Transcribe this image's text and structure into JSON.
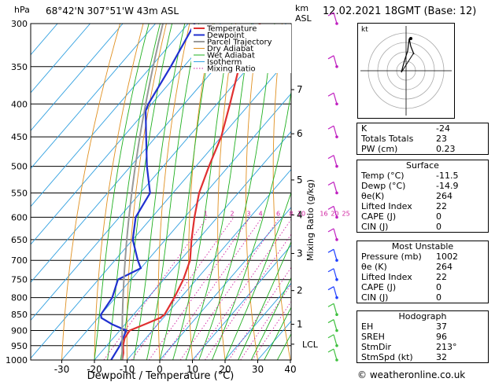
{
  "header": {
    "location": "68°42'N  307°51'W  43m  ASL",
    "datetime": "12.02.2021  18GMT  (Base: 12)",
    "hpa_unit": "hPa",
    "km_unit": "km",
    "asl_unit": "ASL"
  },
  "chart_data": {
    "type": "skew-t",
    "xlabel": "Dewpoint / Temperature (°C)",
    "ylabel": "hPa",
    "y2label": "Mixing Ratio (g/kg)",
    "pressure_levels": [
      300,
      350,
      400,
      450,
      500,
      550,
      600,
      650,
      700,
      750,
      800,
      850,
      900,
      950,
      1000
    ],
    "temperature_ticks": [
      -30,
      -20,
      -10,
      0,
      10,
      20,
      30,
      40
    ],
    "km_ticks": [
      {
        "km": "1",
        "p": 880
      },
      {
        "km": "2",
        "p": 780
      },
      {
        "km": "3",
        "p": 683
      },
      {
        "km": "4",
        "p": 595
      },
      {
        "km": "5",
        "p": 525
      },
      {
        "km": "6",
        "p": 445
      },
      {
        "km": "7",
        "p": 380
      }
    ],
    "lcl": {
      "label": "LCL",
      "p": 945
    },
    "mixing_ratio_labels": [
      "1",
      "2",
      "3",
      "4",
      "6",
      "8",
      "10",
      "16",
      "20",
      "25"
    ],
    "legend": [
      "Temperature",
      "Dewpoint",
      "Parcel Trajectory",
      "Dry Adiabat",
      "Wet Adiabat",
      "Isotherm",
      "Mixing Ratio"
    ],
    "series": [
      {
        "name": "Temperature",
        "color": "#e03030",
        "points": [
          [
            1000,
            -11.5
          ],
          [
            975,
            -13
          ],
          [
            950,
            -15
          ],
          [
            925,
            -16.5
          ],
          [
            900,
            -17
          ],
          [
            880,
            -14
          ],
          [
            860,
            -11
          ],
          [
            850,
            -10.5
          ],
          [
            800,
            -12
          ],
          [
            750,
            -14
          ],
          [
            700,
            -17
          ],
          [
            650,
            -22
          ],
          [
            600,
            -27
          ],
          [
            550,
            -32
          ],
          [
            500,
            -36
          ],
          [
            450,
            -40
          ],
          [
            400,
            -46
          ],
          [
            350,
            -53
          ],
          [
            300,
            -58
          ]
        ]
      },
      {
        "name": "Dewpoint",
        "color": "#2030d0",
        "points": [
          [
            1000,
            -14.9
          ],
          [
            950,
            -16
          ],
          [
            900,
            -18
          ],
          [
            880,
            -24
          ],
          [
            860,
            -29
          ],
          [
            850,
            -30
          ],
          [
            800,
            -31
          ],
          [
            750,
            -34
          ],
          [
            720,
            -30
          ],
          [
            700,
            -33
          ],
          [
            650,
            -40
          ],
          [
            600,
            -45
          ],
          [
            550,
            -47
          ],
          [
            500,
            -55
          ],
          [
            450,
            -63
          ],
          [
            410,
            -70
          ],
          [
            400,
            -71
          ],
          [
            350,
            -74
          ],
          [
            300,
            -78
          ]
        ]
      }
    ],
    "colors": {
      "isotherm": "#30a0e0",
      "dry_adiabat": "#e09020",
      "wet_adiabat": "#20b020",
      "mixing_ratio": "#d020a0"
    }
  },
  "hodograph": {
    "label": "kt"
  },
  "indices": [
    {
      "k": "K",
      "v": "-24"
    },
    {
      "k": "Totals Totals",
      "v": "23"
    },
    {
      "k": "PW (cm)",
      "v": "0.23"
    }
  ],
  "surface": {
    "title": "Surface",
    "rows": [
      {
        "k": "Temp (°C)",
        "v": "-11.5"
      },
      {
        "k": "Dewp (°C)",
        "v": "-14.9"
      },
      {
        "k": "θe(K)",
        "v": "264"
      },
      {
        "k": "Lifted Index",
        "v": "22"
      },
      {
        "k": "CAPE (J)",
        "v": "0"
      },
      {
        "k": "CIN (J)",
        "v": "0"
      }
    ]
  },
  "most_unstable": {
    "title": "Most Unstable",
    "rows": [
      {
        "k": "Pressure (mb)",
        "v": "1002"
      },
      {
        "k": "θe (K)",
        "v": "264"
      },
      {
        "k": "Lifted Index",
        "v": "22"
      },
      {
        "k": "CAPE (J)",
        "v": "0"
      },
      {
        "k": "CIN (J)",
        "v": "0"
      }
    ]
  },
  "hodograph_table": {
    "title": "Hodograph",
    "rows": [
      {
        "k": "EH",
        "v": "37"
      },
      {
        "k": "SREH",
        "v": "96"
      },
      {
        "k": "StmDir",
        "v": "213°"
      },
      {
        "k": "StmSpd (kt)",
        "v": "32"
      }
    ]
  },
  "credit": "© weatheronline.co.uk"
}
